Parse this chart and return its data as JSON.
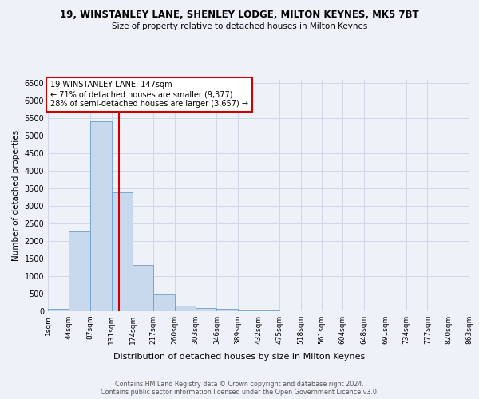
{
  "title": "19, WINSTANLEY LANE, SHENLEY LODGE, MILTON KEYNES, MK5 7BT",
  "subtitle": "Size of property relative to detached houses in Milton Keynes",
  "xlabel": "Distribution of detached houses by size in Milton Keynes",
  "ylabel": "Number of detached properties",
  "footer_line1": "Contains HM Land Registry data © Crown copyright and database right 2024.",
  "footer_line2": "Contains public sector information licensed under the Open Government Licence v3.0.",
  "bar_color": "#c8d9ed",
  "bar_edge_color": "#6b9fc8",
  "background_color": "#eef2f8",
  "grid_color": "#d0d8e8",
  "annotation_text": "19 WINSTANLEY LANE: 147sqm\n← 71% of detached houses are smaller (9,377)\n28% of semi-detached houses are larger (3,657) →",
  "vline_x": 147,
  "vline_color": "#cc0000",
  "bins": [
    1,
    44,
    87,
    131,
    174,
    217,
    260,
    303,
    346,
    389,
    432,
    475,
    518,
    561,
    604,
    648,
    691,
    734,
    777,
    820,
    863
  ],
  "counts": [
    70,
    2270,
    5420,
    3380,
    1310,
    480,
    155,
    90,
    70,
    30,
    15,
    10,
    5,
    3,
    2,
    2,
    1,
    1,
    1,
    1
  ],
  "ylim": [
    0,
    6600
  ],
  "yticks": [
    0,
    500,
    1000,
    1500,
    2000,
    2500,
    3000,
    3500,
    4000,
    4500,
    5000,
    5500,
    6000,
    6500
  ],
  "title_fontsize": 8.5,
  "subtitle_fontsize": 7.5,
  "annotation_box_color": "white",
  "annotation_box_edge": "#cc0000"
}
